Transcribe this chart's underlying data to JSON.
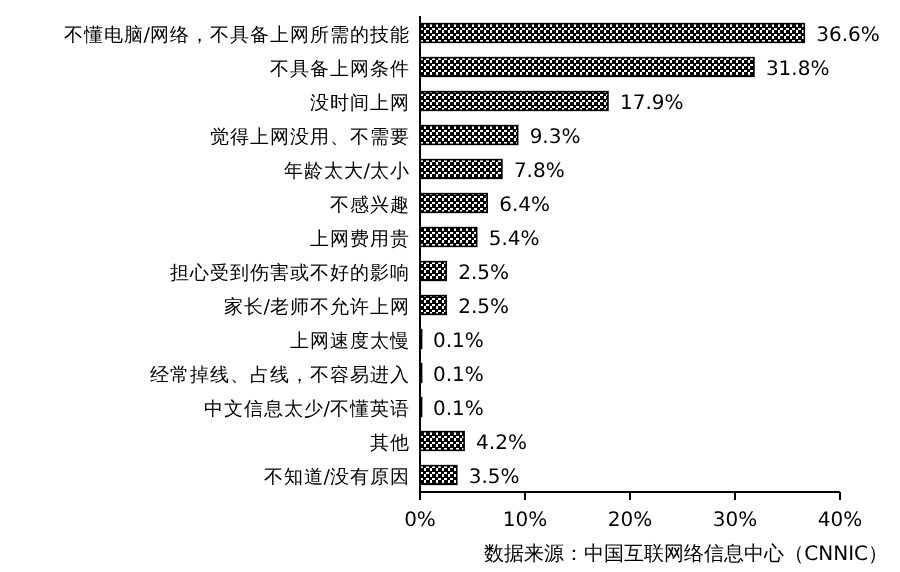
{
  "chart_data": {
    "type": "bar",
    "orientation": "horizontal",
    "categories": [
      "不懂电脑/网络，不具备上网所需的技能",
      "不具备上网条件",
      "没时间上网",
      "觉得上网没用、不需要",
      "年龄太大/太小",
      "不感兴趣",
      "上网费用贵",
      "担心受到伤害或不好的影响",
      "家长/老师不允许上网",
      "上网速度太慢",
      "经常掉线、占线，不容易进入",
      "中文信息太少/不懂英语",
      "其他",
      "不知道/没有原因"
    ],
    "values": [
      36.6,
      31.8,
      17.9,
      9.3,
      7.8,
      6.4,
      5.4,
      2.5,
      2.5,
      0.1,
      0.1,
      0.1,
      4.2,
      3.5
    ],
    "value_labels": [
      "36.6%",
      "31.8%",
      "17.9%",
      "9.3%",
      "7.8%",
      "6.4%",
      "5.4%",
      "2.5%",
      "2.5%",
      "0.1%",
      "0.1%",
      "0.1%",
      "4.2%",
      "3.5%"
    ],
    "color": "#000000",
    "xlim": [
      0,
      40
    ],
    "xticks": [
      {
        "value": 0,
        "label": "0%"
      },
      {
        "value": 10,
        "label": "10%"
      },
      {
        "value": 20,
        "label": "20%"
      },
      {
        "value": 30,
        "label": "30%"
      },
      {
        "value": 40,
        "label": "40%"
      }
    ],
    "grid": false,
    "annotations": [
      "数据来源：中国互联网络信息中心（CNNIC）"
    ]
  }
}
